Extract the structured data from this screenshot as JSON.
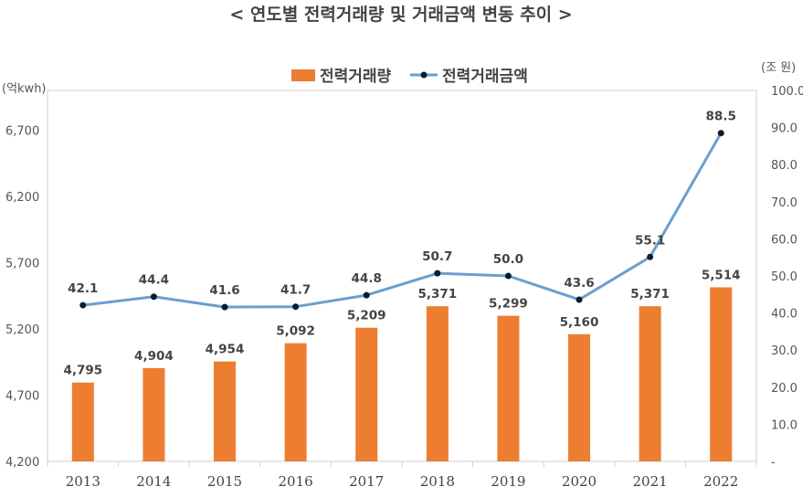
{
  "chart_data": {
    "type": "bar+line",
    "title": "< 연도별 전력거래량 및 거래금액 변동 추이 >",
    "categories": [
      "2013",
      "2014",
      "2015",
      "2016",
      "2017",
      "2018",
      "2019",
      "2020",
      "2021",
      "2022"
    ],
    "series": [
      {
        "name": "전력거래량",
        "type": "bar",
        "axis": "left",
        "color": "#ED7D31",
        "values": [
          4795,
          4904,
          4954,
          5092,
          5209,
          5371,
          5299,
          5160,
          5371,
          5514
        ],
        "labels": [
          "4,795",
          "4,904",
          "4,954",
          "5,092",
          "5,209",
          "5,371",
          "5,299",
          "5,160",
          "5,371",
          "5,514"
        ]
      },
      {
        "name": "전력거래금액",
        "type": "line",
        "axis": "right",
        "color": "#6A9FD0",
        "marker_color": "#0D1B2A",
        "values": [
          42.1,
          44.4,
          41.6,
          41.7,
          44.8,
          50.7,
          50.0,
          43.6,
          55.1,
          88.5
        ],
        "labels": [
          "42.1",
          "44.4",
          "41.6",
          "41.7",
          "44.8",
          "50.7",
          "50.0",
          "43.6",
          "55.1",
          "88.5"
        ]
      }
    ],
    "left_axis": {
      "unit": "(억kwh)",
      "min": 4200,
      "max": 7000,
      "ticks": [
        4200,
        4700,
        5200,
        5700,
        6200,
        6700
      ],
      "tick_labels": [
        "4,200",
        "4,700",
        "5,200",
        "5,700",
        "6,200",
        "6,700"
      ]
    },
    "right_axis": {
      "unit": "(조 원)",
      "min": 0,
      "max": 100,
      "ticks": [
        0,
        10,
        20,
        30,
        40,
        50,
        60,
        70,
        80,
        90,
        100
      ],
      "tick_labels": [
        "-",
        "10.0",
        "20.0",
        "30.0",
        "40.0",
        "50.0",
        "60.0",
        "70.0",
        "80.0",
        "90.0",
        "100.0"
      ]
    },
    "grid": false,
    "legend_position": "top-center"
  }
}
